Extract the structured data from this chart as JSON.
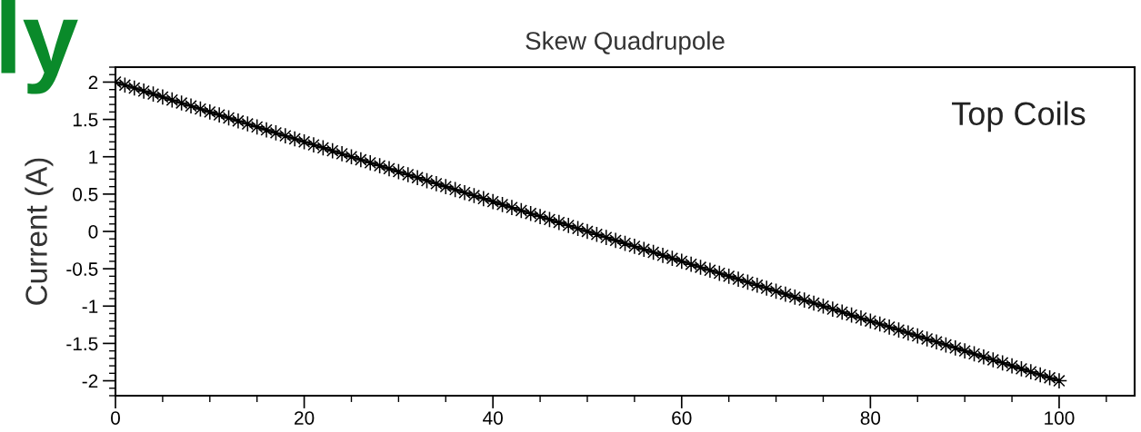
{
  "chart_data": {
    "type": "line",
    "title": "Skew Quadrupole",
    "ylabel": "Current (A)",
    "annotations": [
      "Top Coils",
      "ly"
    ],
    "x": [
      0,
      1,
      2,
      3,
      4,
      5,
      6,
      7,
      8,
      9,
      10,
      11,
      12,
      13,
      14,
      15,
      16,
      17,
      18,
      19,
      20,
      21,
      22,
      23,
      24,
      25,
      26,
      27,
      28,
      29,
      30,
      31,
      32,
      33,
      34,
      35,
      36,
      37,
      38,
      39,
      40,
      41,
      42,
      43,
      44,
      45,
      46,
      47,
      48,
      49,
      50,
      51,
      52,
      53,
      54,
      55,
      56,
      57,
      58,
      59,
      60,
      61,
      62,
      63,
      64,
      65,
      66,
      67,
      68,
      69,
      70,
      71,
      72,
      73,
      74,
      75,
      76,
      77,
      78,
      79,
      80,
      81,
      82,
      83,
      84,
      85,
      86,
      87,
      88,
      89,
      90,
      91,
      92,
      93,
      94,
      95,
      96,
      97,
      98,
      99,
      100
    ],
    "values": [
      2.0,
      1.96,
      1.92,
      1.88,
      1.84,
      1.8,
      1.76,
      1.72,
      1.68,
      1.64,
      1.6,
      1.56,
      1.52,
      1.48,
      1.44,
      1.4,
      1.36,
      1.32,
      1.28,
      1.24,
      1.2,
      1.16,
      1.12,
      1.08,
      1.04,
      1.0,
      0.96,
      0.92,
      0.88,
      0.84,
      0.8,
      0.76,
      0.72,
      0.68,
      0.64,
      0.6,
      0.56,
      0.52,
      0.48,
      0.44,
      0.4,
      0.36,
      0.32,
      0.28,
      0.24,
      0.2,
      0.16,
      0.12,
      0.08,
      0.04,
      0.0,
      -0.04,
      -0.08,
      -0.12,
      -0.16,
      -0.2,
      -0.24,
      -0.28,
      -0.32,
      -0.36,
      -0.4,
      -0.44,
      -0.48,
      -0.52,
      -0.56,
      -0.6,
      -0.64,
      -0.68,
      -0.72,
      -0.76,
      -0.8,
      -0.84,
      -0.88,
      -0.92,
      -0.96,
      -1.0,
      -1.04,
      -1.08,
      -1.12,
      -1.16,
      -1.2,
      -1.24,
      -1.28,
      -1.32,
      -1.36,
      -1.4,
      -1.44,
      -1.48,
      -1.52,
      -1.56,
      -1.6,
      -1.64,
      -1.68,
      -1.72,
      -1.76,
      -1.8,
      -1.84,
      -1.88,
      -1.92,
      -1.96,
      -2.0
    ],
    "color": "#000000",
    "marker": "star",
    "line_style": "solid",
    "xlim": [
      0,
      108
    ],
    "xticks": [
      0,
      20,
      40,
      60,
      80,
      100
    ],
    "ylim": [
      -2.2,
      2.2
    ],
    "yticks": [
      2,
      1.5,
      1,
      0.5,
      0,
      -0.5,
      -1,
      -1.5,
      -2
    ],
    "grid": false,
    "legend": false
  }
}
